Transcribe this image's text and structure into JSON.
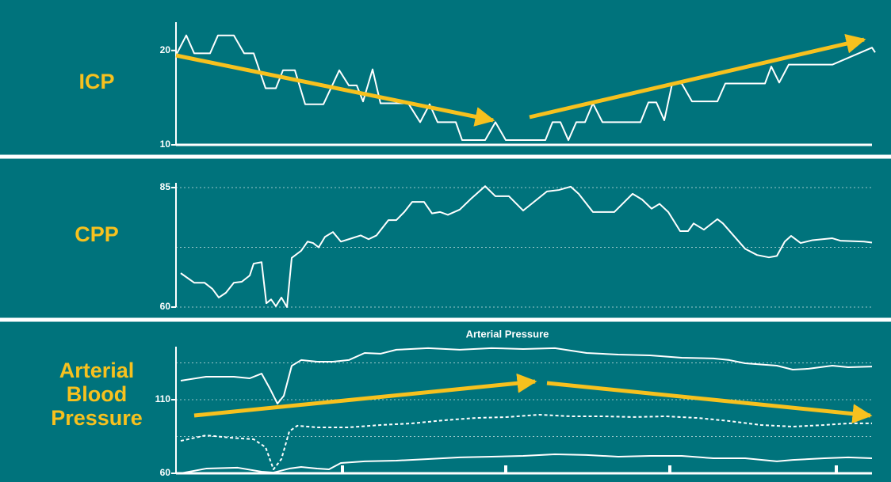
{
  "chart_data": [
    {
      "type": "line",
      "label": [
        "ICP"
      ],
      "xlim": [
        0,
        880
      ],
      "ylim": [
        10,
        23
      ],
      "yticks": [
        10,
        20
      ],
      "gridlines": [],
      "series": [
        {
          "color": "#ffffff",
          "dash": false,
          "x": [
            0,
            13,
            23,
            43,
            53,
            73,
            86,
            98,
            113,
            126,
            135,
            150,
            163,
            186,
            206,
            218,
            228,
            236,
            248,
            258,
            293,
            308,
            320,
            330,
            353,
            361,
            390,
            403,
            416,
            466,
            475,
            485,
            495,
            505,
            516,
            526,
            538,
            586,
            596,
            606,
            616,
            626,
            638,
            651,
            683,
            693,
            743,
            751,
            761,
            773,
            828,
            878,
            882
          ],
          "values": [
            19.5,
            21.6,
            19.7,
            19.7,
            21.6,
            21.6,
            19.7,
            19.7,
            16,
            16,
            17.9,
            17.9,
            14.3,
            14.3,
            17.9,
            16.3,
            16.3,
            14.6,
            18,
            14.4,
            14.4,
            12.4,
            14.3,
            12.4,
            12.4,
            10.5,
            10.5,
            12.4,
            10.5,
            10.5,
            12.4,
            12.4,
            10.5,
            12.4,
            12.4,
            14.4,
            12.4,
            12.4,
            14.5,
            14.5,
            12.6,
            16.5,
            16.5,
            14.6,
            14.6,
            16.5,
            16.5,
            18.3,
            16.6,
            18.5,
            18.5,
            20.3,
            19.8
          ]
        }
      ]
    },
    {
      "type": "line",
      "label": [
        "CPP"
      ],
      "xlim": [
        0,
        880
      ],
      "ylim": [
        60,
        86
      ],
      "yticks": [
        60,
        85
      ],
      "gridlines": [
        60,
        72.5,
        85
      ],
      "series": [
        {
          "color": "#ffffff",
          "dash": false,
          "x": [
            6,
            23,
            36,
            46,
            54,
            63,
            73,
            83,
            93,
            98,
            108,
            114,
            120,
            126,
            133,
            140,
            146,
            158,
            166,
            173,
            180,
            188,
            198,
            208,
            218,
            233,
            243,
            253,
            268,
            278,
            288,
            298,
            313,
            323,
            333,
            343,
            358,
            373,
            390,
            403,
            420,
            438,
            450,
            468,
            483,
            498,
            508,
            526,
            553,
            576,
            588,
            600,
            610,
            621,
            636,
            646,
            653,
            666,
            683,
            690,
            718,
            733,
            748,
            758,
            768,
            776,
            788,
            803,
            828,
            838,
            868,
            878
          ],
          "values": [
            67.1,
            65.1,
            65.1,
            63.8,
            62,
            63,
            65.1,
            65.3,
            66.6,
            69.1,
            69.4,
            60.8,
            61.6,
            60.2,
            62,
            60,
            70.3,
            71.8,
            73.7,
            73.4,
            72.5,
            74.7,
            75.7,
            73.7,
            74.2,
            75,
            74.2,
            75,
            78.2,
            78.2,
            79.9,
            82,
            82,
            79.6,
            79.9,
            79.3,
            80.4,
            82.8,
            85.3,
            83.2,
            83.2,
            80.2,
            81.8,
            84.2,
            84.5,
            85.2,
            83.7,
            79.9,
            79.9,
            83.7,
            82.5,
            80.6,
            81.6,
            79.9,
            75.9,
            75.9,
            77.5,
            76.2,
            78.4,
            77.5,
            72.2,
            70.9,
            70.4,
            70.7,
            73.7,
            74.9,
            73.4,
            74,
            74.4,
            73.9,
            73.7,
            73.5
          ]
        }
      ]
    },
    {
      "type": "line",
      "label": [
        "Arterial",
        "Blood",
        "Pressure"
      ],
      "subtitle": "Arterial Pressure",
      "xlim": [
        0,
        880
      ],
      "ylim": [
        60,
        146
      ],
      "yticks": [
        60,
        110
      ],
      "gridlines": [
        85,
        110,
        135
      ],
      "series": [
        {
          "color": "#ffffff",
          "dash": false,
          "x": [
            6,
            38,
            73,
            93,
            108,
            118,
            128,
            136,
            146,
            158,
            178,
            198,
            218,
            238,
            258,
            278,
            318,
            358,
            398,
            438,
            478,
            518,
            558,
            598,
            638,
            678,
            698,
            718,
            758,
            778,
            798,
            828,
            848,
            878
          ],
          "values": [
            122.9,
            125.6,
            125.6,
            124.5,
            127.7,
            118,
            107.3,
            112.6,
            133,
            136.9,
            135.8,
            135.8,
            136.9,
            141.7,
            141.2,
            143.9,
            145,
            143.9,
            145,
            144.4,
            145,
            141.7,
            140.6,
            140.1,
            138.5,
            138,
            136.9,
            134.7,
            133.1,
            130.4,
            131,
            133.1,
            132,
            132.5
          ]
        },
        {
          "color": "#ffffff",
          "dash": true,
          "x": [
            6,
            38,
            68,
            98,
            113,
            123,
            133,
            143,
            153,
            178,
            218,
            258,
            298,
            338,
            378,
            418,
            458,
            498,
            538,
            578,
            618,
            658,
            698,
            738,
            778,
            818,
            848,
            878
          ],
          "values": [
            82,
            85.8,
            84.2,
            83.1,
            77.7,
            62.7,
            69.7,
            88.5,
            92.3,
            91.2,
            91.2,
            92.8,
            93.9,
            96,
            97.6,
            98.2,
            99.8,
            98.7,
            98.7,
            98.2,
            98.7,
            97.6,
            95.5,
            92.8,
            91.7,
            92.8,
            93.9,
            93.9
          ]
        },
        {
          "color": "#ffffff",
          "dash": false,
          "x": [
            6,
            38,
            78,
            108,
            123,
            143,
            158,
            178,
            193,
            208,
            238,
            278,
            318,
            358,
            398,
            438,
            478,
            518,
            558,
            598,
            638,
            678,
            718,
            758,
            778,
            818,
            848,
            878
          ],
          "values": [
            60,
            63.2,
            63.8,
            61.1,
            60.5,
            63.2,
            64.3,
            63.2,
            62.7,
            67,
            68.1,
            68.6,
            69.7,
            70.8,
            71.3,
            71.8,
            72.9,
            72.4,
            71.3,
            71.8,
            71.8,
            70.2,
            70.2,
            68.1,
            69.1,
            70.2,
            70.8,
            70.2
          ]
        }
      ]
    }
  ]
}
